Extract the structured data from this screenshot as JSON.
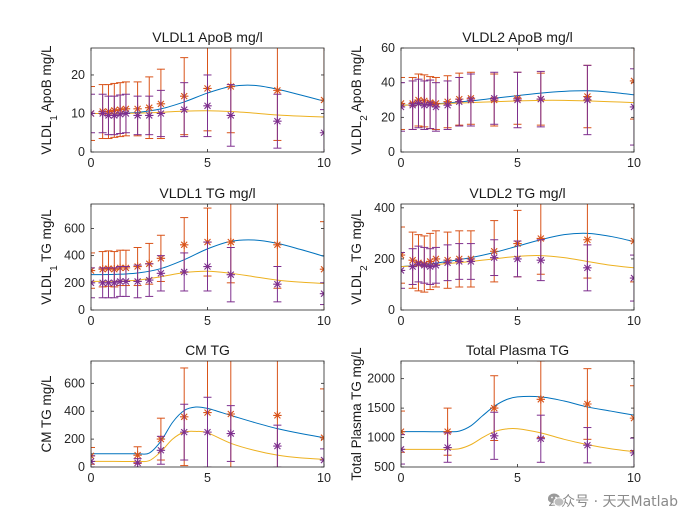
{
  "watermark": "公众号 · 天天Matlab",
  "colors": {
    "blue": "#0072BD",
    "orange": "#D95319",
    "yellow": "#EDB120",
    "purple": "#7E2F8E",
    "axis": "#262626"
  },
  "chart_data": [
    {
      "type": "line",
      "id": "vldl1-apob",
      "title": "VLDL1 ApoB mg/l",
      "ylabel_main": "VLDL",
      "ylabel_sub": "1",
      "ylabel_rest": " ApoB mg/L",
      "xlim": [
        0,
        10
      ],
      "ylim": [
        0,
        27
      ],
      "xticks": [
        0,
        5,
        10
      ],
      "yticks": [
        0,
        10,
        20
      ],
      "curves": [
        {
          "name": "model-1",
          "color": "blue",
          "x": [
            0,
            1,
            2,
            3,
            4,
            5,
            6,
            7,
            8,
            9,
            10
          ],
          "y": [
            10,
            10,
            10.3,
            11.2,
            13,
            15.3,
            17,
            17.3,
            16.3,
            14.8,
            13.2
          ]
        },
        {
          "name": "model-2",
          "color": "yellow",
          "x": [
            0,
            1,
            2,
            3,
            4,
            5,
            6,
            7,
            8,
            9,
            10
          ],
          "y": [
            10,
            10,
            10.1,
            10.3,
            10.6,
            10.7,
            10.5,
            10.1,
            9.6,
            9.3,
            9.1
          ]
        }
      ],
      "series": [
        {
          "name": "data-1",
          "color": "orange",
          "x": [
            0,
            0.5,
            0.75,
            1,
            1.25,
            1.5,
            2,
            2.5,
            3,
            4,
            5,
            6,
            8,
            10
          ],
          "y": [
            10,
            10.5,
            10.5,
            10.8,
            11,
            11.2,
            11.2,
            11.5,
            12.5,
            14.5,
            16.5,
            17,
            16,
            13.5
          ],
          "err": [
            7,
            7,
            7,
            7,
            7,
            7,
            7,
            8,
            9,
            10,
            11,
            12,
            13,
            14
          ]
        },
        {
          "name": "data-2",
          "color": "purple",
          "x": [
            0,
            0.5,
            0.75,
            1,
            1.25,
            1.5,
            2,
            2.5,
            3,
            4,
            5,
            6,
            8,
            10
          ],
          "y": [
            10,
            10,
            9.5,
            9.5,
            9.8,
            10,
            9.5,
            9.5,
            10,
            11,
            12,
            9.5,
            8,
            5
          ],
          "err": [
            5,
            5,
            5,
            5,
            5,
            5,
            5,
            5,
            6,
            7,
            8,
            8,
            7,
            6
          ]
        }
      ]
    },
    {
      "type": "line",
      "id": "vldl2-apob",
      "title": "VLDL2 ApoB mg/l",
      "ylabel_main": "VLDL",
      "ylabel_sub": "2",
      "ylabel_rest": " ApoB mg/L",
      "xlim": [
        0,
        10
      ],
      "ylim": [
        0,
        60
      ],
      "xticks": [
        0,
        5,
        10
      ],
      "yticks": [
        0,
        20,
        40,
        60
      ],
      "curves": [
        {
          "name": "model-1",
          "color": "blue",
          "x": [
            0,
            1,
            2,
            3,
            4,
            5,
            6,
            7,
            8,
            9,
            10
          ],
          "y": [
            27,
            27.5,
            28.3,
            29.5,
            31,
            32.5,
            34,
            35,
            35.3,
            34.5,
            33
          ]
        },
        {
          "name": "model-2",
          "color": "yellow",
          "x": [
            0,
            1,
            2,
            3,
            4,
            5,
            6,
            7,
            8,
            9,
            10
          ],
          "y": [
            27,
            27.3,
            28,
            28.5,
            29,
            29.5,
            29.8,
            29.8,
            29.5,
            29,
            28.5
          ]
        }
      ],
      "series": [
        {
          "name": "data-1",
          "color": "orange",
          "x": [
            0,
            0.5,
            0.75,
            1,
            1.25,
            1.5,
            2,
            2.5,
            3,
            4,
            5,
            6,
            8,
            10
          ],
          "y": [
            28,
            28,
            30,
            29.5,
            28.5,
            28,
            29,
            30.5,
            31,
            30,
            31,
            30.5,
            32,
            41
          ],
          "err": [
            15,
            15,
            15,
            15,
            15,
            15,
            15,
            15,
            15,
            15,
            15,
            15,
            18,
            22
          ]
        },
        {
          "name": "data-2",
          "color": "purple",
          "x": [
            0,
            0.5,
            0.75,
            1,
            1.25,
            1.5,
            2,
            2.5,
            3,
            4,
            5,
            6,
            8,
            10
          ],
          "y": [
            26,
            27,
            28,
            27,
            27.5,
            26,
            27,
            29,
            30,
            31,
            30,
            30.5,
            30,
            26
          ],
          "err": [
            14,
            14,
            14,
            14,
            14,
            14,
            14,
            14,
            15,
            15,
            16,
            16,
            20,
            22
          ]
        }
      ]
    },
    {
      "type": "line",
      "id": "vldl1-tg",
      "title": "VLDL1 TG mg/l",
      "ylabel_main": "VLDL",
      "ylabel_sub": "1",
      "ylabel_rest": " TG mg/L",
      "xlim": [
        0,
        10
      ],
      "ylim": [
        0,
        780
      ],
      "xticks": [
        0,
        5,
        10
      ],
      "yticks": [
        0,
        200,
        400,
        600
      ],
      "curves": [
        {
          "name": "model-1",
          "color": "blue",
          "x": [
            0,
            1,
            2,
            3,
            4,
            5,
            6,
            7,
            8,
            9,
            10
          ],
          "y": [
            260,
            262,
            272,
            305,
            370,
            450,
            505,
            515,
            490,
            445,
            395
          ]
        },
        {
          "name": "model-2",
          "color": "yellow",
          "x": [
            0,
            1,
            2,
            3,
            4,
            5,
            6,
            7,
            8,
            9,
            10
          ],
          "y": [
            210,
            212,
            220,
            245,
            275,
            285,
            270,
            245,
            220,
            205,
            195
          ]
        }
      ],
      "series": [
        {
          "name": "data-1",
          "color": "orange",
          "x": [
            0,
            0.5,
            0.75,
            1,
            1.25,
            1.5,
            2,
            2.5,
            3,
            4,
            5,
            6,
            8,
            10
          ],
          "y": [
            290,
            300,
            305,
            300,
            310,
            310,
            320,
            340,
            380,
            480,
            500,
            500,
            480,
            300
          ],
          "err": [
            130,
            130,
            130,
            130,
            130,
            130,
            140,
            150,
            170,
            200,
            250,
            300,
            320,
            350
          ]
        },
        {
          "name": "data-2",
          "color": "purple",
          "x": [
            0,
            0.5,
            0.75,
            1,
            1.25,
            1.5,
            2,
            2.5,
            3,
            4,
            5,
            6,
            8,
            10
          ],
          "y": [
            200,
            200,
            200,
            200,
            210,
            210,
            210,
            220,
            270,
            280,
            320,
            260,
            190,
            120
          ],
          "err": [
            110,
            110,
            110,
            110,
            110,
            110,
            120,
            120,
            130,
            140,
            180,
            200,
            130,
            80
          ]
        }
      ]
    },
    {
      "type": "line",
      "id": "vldl2-tg",
      "title": "VLDL2 TG mg/l",
      "ylabel_main": "VLDL",
      "ylabel_sub": "2",
      "ylabel_rest": " TG mg/L",
      "xlim": [
        0,
        10
      ],
      "ylim": [
        0,
        415
      ],
      "xticks": [
        0,
        5,
        10
      ],
      "yticks": [
        0,
        200,
        400
      ],
      "curves": [
        {
          "name": "model-1",
          "color": "blue",
          "x": [
            0,
            1,
            2,
            3,
            4,
            5,
            6,
            7,
            8,
            9,
            10
          ],
          "y": [
            170,
            178,
            190,
            205,
            225,
            250,
            275,
            295,
            300,
            288,
            268
          ]
        },
        {
          "name": "model-2",
          "color": "yellow",
          "x": [
            0,
            1,
            2,
            3,
            4,
            5,
            6,
            7,
            8,
            9,
            10
          ],
          "y": [
            170,
            174,
            182,
            190,
            200,
            210,
            213,
            205,
            190,
            175,
            165
          ]
        }
      ],
      "series": [
        {
          "name": "data-1",
          "color": "orange",
          "x": [
            0,
            0.5,
            0.75,
            1,
            1.25,
            1.5,
            2,
            2.5,
            3,
            4,
            5,
            6,
            8,
            10
          ],
          "y": [
            215,
            195,
            185,
            180,
            190,
            200,
            195,
            200,
            200,
            230,
            260,
            280,
            275,
            270
          ],
          "err": [
            110,
            110,
            110,
            110,
            110,
            110,
            110,
            110,
            110,
            120,
            130,
            140,
            150,
            160
          ]
        },
        {
          "name": "data-2",
          "color": "purple",
          "x": [
            0,
            0.5,
            0.75,
            1,
            1.25,
            1.5,
            2,
            2.5,
            3,
            4,
            5,
            6,
            8,
            10
          ],
          "y": [
            155,
            170,
            180,
            175,
            170,
            175,
            185,
            190,
            190,
            205,
            200,
            195,
            165,
            125
          ],
          "err": [
            70,
            70,
            70,
            70,
            70,
            70,
            70,
            70,
            70,
            70,
            70,
            80,
            90,
            90
          ]
        }
      ]
    },
    {
      "type": "line",
      "id": "cm-tg",
      "title": "CM TG",
      "ylabel_main": "CM TG mg/L",
      "ylabel_sub": "",
      "ylabel_rest": "",
      "xlim": [
        0,
        10
      ],
      "ylim": [
        0,
        760
      ],
      "xticks": [
        0,
        5,
        10
      ],
      "yticks": [
        0,
        200,
        400,
        600
      ],
      "curves": [
        {
          "name": "model-1",
          "color": "blue",
          "x": [
            0,
            1,
            2,
            2.5,
            3,
            3.5,
            4,
            4.5,
            5,
            6,
            7,
            8,
            9,
            10
          ],
          "y": [
            95,
            95,
            95,
            100,
            185,
            320,
            405,
            430,
            420,
            370,
            320,
            275,
            240,
            210
          ]
        },
        {
          "name": "model-2",
          "color": "yellow",
          "x": [
            0,
            1,
            2,
            2.5,
            3,
            3.5,
            4,
            4.5,
            5,
            6,
            7,
            8,
            9,
            10
          ],
          "y": [
            40,
            40,
            40,
            45,
            110,
            200,
            250,
            255,
            245,
            170,
            120,
            85,
            65,
            55
          ]
        }
      ],
      "series": [
        {
          "name": "data-1",
          "color": "orange",
          "x": [
            0,
            2,
            3,
            4,
            5,
            6,
            8,
            10
          ],
          "y": [
            80,
            85,
            200,
            360,
            390,
            380,
            370,
            210
          ],
          "err": [
            60,
            60,
            150,
            350,
            450,
            550,
            450,
            350
          ]
        },
        {
          "name": "data-2",
          "color": "purple",
          "x": [
            0,
            2,
            3,
            4,
            5,
            6,
            8,
            10
          ],
          "y": [
            40,
            30,
            120,
            250,
            250,
            240,
            150,
            50
          ],
          "err": [
            40,
            30,
            100,
            200,
            250,
            200,
            150,
            80
          ]
        }
      ]
    },
    {
      "type": "line",
      "id": "total-plasma-tg",
      "title": "Total Plasma TG",
      "ylabel_main": "Total Plasma TG mg/L",
      "ylabel_sub": "",
      "ylabel_rest": "",
      "xlim": [
        0,
        10
      ],
      "ylim": [
        500,
        2300
      ],
      "xticks": [
        0,
        5,
        10
      ],
      "yticks": [
        500,
        1000,
        1500,
        2000
      ],
      "curves": [
        {
          "name": "model-1",
          "color": "blue",
          "x": [
            0,
            1,
            2,
            2.5,
            3,
            3.5,
            4,
            4.5,
            5,
            6,
            7,
            8,
            9,
            10
          ],
          "y": [
            1100,
            1100,
            1100,
            1110,
            1200,
            1370,
            1530,
            1640,
            1690,
            1690,
            1620,
            1520,
            1450,
            1380
          ]
        },
        {
          "name": "model-2",
          "color": "yellow",
          "x": [
            0,
            1,
            2,
            2.5,
            3,
            3.5,
            4,
            4.5,
            5,
            6,
            7,
            8,
            9,
            10
          ],
          "y": [
            800,
            800,
            800,
            810,
            880,
            1000,
            1100,
            1145,
            1150,
            1080,
            970,
            880,
            810,
            760
          ]
        }
      ],
      "series": [
        {
          "name": "data-1",
          "color": "orange",
          "x": [
            0,
            2,
            4,
            6,
            8,
            10
          ],
          "y": [
            1100,
            1100,
            1500,
            1650,
            1570,
            1330
          ],
          "err": [
            350,
            400,
            550,
            650,
            600,
            550
          ]
        },
        {
          "name": "data-2",
          "color": "purple",
          "x": [
            0,
            2,
            4,
            6,
            8,
            10
          ],
          "y": [
            800,
            830,
            1030,
            980,
            870,
            740
          ],
          "err": [
            250,
            250,
            400,
            400,
            300,
            250
          ]
        }
      ]
    }
  ]
}
